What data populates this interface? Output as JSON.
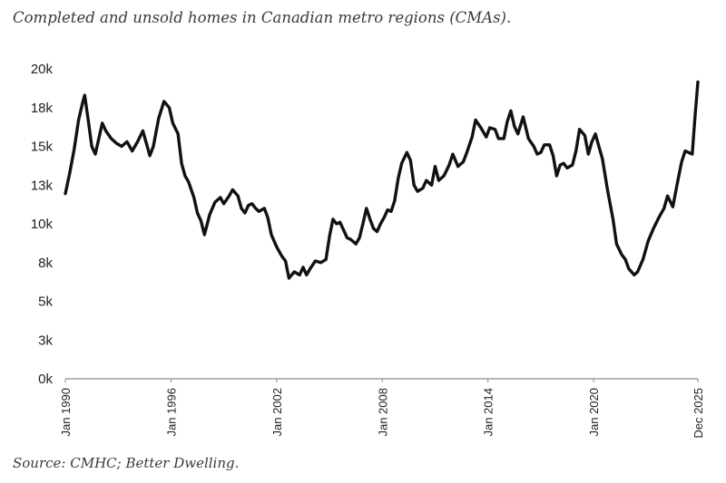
{
  "title": "Completed and unsold homes in Canadian metro regions (CMAs).",
  "source": "Source: CMHC; Better Dwelling.",
  "colors": {
    "line": "#111111",
    "axis": "#8c8c8c",
    "text": "#222222"
  },
  "chart_data": {
    "type": "line",
    "title": "Completed and unsold homes in Canadian metro regions (CMAs).",
    "xlabel": "",
    "ylabel": "",
    "ylim": [
      0,
      20000
    ],
    "xlim": [
      1990.0,
      2025.92
    ],
    "grid": false,
    "legend": "none",
    "yticks": [
      {
        "value": 0,
        "label": "0k"
      },
      {
        "value": 2500,
        "label": "3k"
      },
      {
        "value": 5000,
        "label": "5k"
      },
      {
        "value": 7500,
        "label": "8k"
      },
      {
        "value": 10000,
        "label": "10k"
      },
      {
        "value": 12500,
        "label": "13k"
      },
      {
        "value": 15000,
        "label": "15k"
      },
      {
        "value": 17500,
        "label": "18k"
      },
      {
        "value": 20000,
        "label": "20k"
      }
    ],
    "xticks": [
      {
        "value": 1990.0,
        "label": "Jan 1990"
      },
      {
        "value": 1996.0,
        "label": "Jan 1996"
      },
      {
        "value": 2002.0,
        "label": "Jan 2002"
      },
      {
        "value": 2008.0,
        "label": "Jan 2008"
      },
      {
        "value": 2014.0,
        "label": "Jan 2014"
      },
      {
        "value": 2020.0,
        "label": "Jan 2020"
      },
      {
        "value": 2025.92,
        "label": "Dec 2025"
      }
    ],
    "series": [
      {
        "values": [
          [
            1990.0,
            11950
          ],
          [
            1990.25,
            13300
          ],
          [
            1990.5,
            14800
          ],
          [
            1990.75,
            16700
          ],
          [
            1991.0,
            17900
          ],
          [
            1991.1,
            18300
          ],
          [
            1991.3,
            16700
          ],
          [
            1991.5,
            15000
          ],
          [
            1991.7,
            14500
          ],
          [
            1991.9,
            15500
          ],
          [
            1992.1,
            16500
          ],
          [
            1992.3,
            16000
          ],
          [
            1992.6,
            15500
          ],
          [
            1992.9,
            15200
          ],
          [
            1993.2,
            15000
          ],
          [
            1993.5,
            15300
          ],
          [
            1993.8,
            14700
          ],
          [
            1994.1,
            15300
          ],
          [
            1994.4,
            16000
          ],
          [
            1994.6,
            15200
          ],
          [
            1994.8,
            14400
          ],
          [
            1995.0,
            15000
          ],
          [
            1995.3,
            16800
          ],
          [
            1995.6,
            17900
          ],
          [
            1995.9,
            17500
          ],
          [
            1996.1,
            16500
          ],
          [
            1996.4,
            15800
          ],
          [
            1996.6,
            13900
          ],
          [
            1996.8,
            13100
          ],
          [
            1997.0,
            12700
          ],
          [
            1997.3,
            11700
          ],
          [
            1997.5,
            10700
          ],
          [
            1997.7,
            10200
          ],
          [
            1997.9,
            9300
          ],
          [
            1998.2,
            10600
          ],
          [
            1998.5,
            11400
          ],
          [
            1998.8,
            11700
          ],
          [
            1999.0,
            11300
          ],
          [
            1999.3,
            11800
          ],
          [
            1999.5,
            12200
          ],
          [
            1999.8,
            11800
          ],
          [
            2000.0,
            11000
          ],
          [
            2000.2,
            10700
          ],
          [
            2000.4,
            11200
          ],
          [
            2000.6,
            11300
          ],
          [
            2000.8,
            11000
          ],
          [
            2001.0,
            10800
          ],
          [
            2001.3,
            11000
          ],
          [
            2001.5,
            10400
          ],
          [
            2001.7,
            9300
          ],
          [
            2002.0,
            8500
          ],
          [
            2002.3,
            7900
          ],
          [
            2002.5,
            7600
          ],
          [
            2002.7,
            6500
          ],
          [
            2003.0,
            6900
          ],
          [
            2003.3,
            6700
          ],
          [
            2003.5,
            7200
          ],
          [
            2003.7,
            6700
          ],
          [
            2003.9,
            7100
          ],
          [
            2004.2,
            7600
          ],
          [
            2004.5,
            7500
          ],
          [
            2004.8,
            7700
          ],
          [
            2005.0,
            9200
          ],
          [
            2005.2,
            10300
          ],
          [
            2005.4,
            10000
          ],
          [
            2005.6,
            10100
          ],
          [
            2005.8,
            9600
          ],
          [
            2006.0,
            9100
          ],
          [
            2006.2,
            9000
          ],
          [
            2006.5,
            8700
          ],
          [
            2006.7,
            9100
          ],
          [
            2006.9,
            10000
          ],
          [
            2007.1,
            11000
          ],
          [
            2007.3,
            10300
          ],
          [
            2007.5,
            9700
          ],
          [
            2007.7,
            9500
          ],
          [
            2007.9,
            10000
          ],
          [
            2008.1,
            10400
          ],
          [
            2008.3,
            10900
          ],
          [
            2008.5,
            10800
          ],
          [
            2008.7,
            11500
          ],
          [
            2008.9,
            12900
          ],
          [
            2009.1,
            13900
          ],
          [
            2009.4,
            14600
          ],
          [
            2009.6,
            14100
          ],
          [
            2009.8,
            12500
          ],
          [
            2010.0,
            12100
          ],
          [
            2010.3,
            12300
          ],
          [
            2010.5,
            12800
          ],
          [
            2010.8,
            12500
          ],
          [
            2011.0,
            13700
          ],
          [
            2011.2,
            12800
          ],
          [
            2011.5,
            13100
          ],
          [
            2011.8,
            13800
          ],
          [
            2012.0,
            14500
          ],
          [
            2012.3,
            13700
          ],
          [
            2012.6,
            14000
          ],
          [
            2012.8,
            14600
          ],
          [
            2013.1,
            15600
          ],
          [
            2013.3,
            16700
          ],
          [
            2013.6,
            16200
          ],
          [
            2013.9,
            15600
          ],
          [
            2014.1,
            16200
          ],
          [
            2014.4,
            16100
          ],
          [
            2014.6,
            15500
          ],
          [
            2014.9,
            15500
          ],
          [
            2015.1,
            16600
          ],
          [
            2015.3,
            17300
          ],
          [
            2015.5,
            16300
          ],
          [
            2015.7,
            15800
          ],
          [
            2016.0,
            16900
          ],
          [
            2016.3,
            15500
          ],
          [
            2016.6,
            15000
          ],
          [
            2016.8,
            14500
          ],
          [
            2017.0,
            14600
          ],
          [
            2017.2,
            15100
          ],
          [
            2017.5,
            15100
          ],
          [
            2017.7,
            14400
          ],
          [
            2017.9,
            13100
          ],
          [
            2018.1,
            13800
          ],
          [
            2018.3,
            13900
          ],
          [
            2018.5,
            13600
          ],
          [
            2018.8,
            13800
          ],
          [
            2019.0,
            14700
          ],
          [
            2019.2,
            16100
          ],
          [
            2019.5,
            15700
          ],
          [
            2019.7,
            14500
          ],
          [
            2019.9,
            15300
          ],
          [
            2020.1,
            15800
          ],
          [
            2020.3,
            15000
          ],
          [
            2020.5,
            14200
          ],
          [
            2020.8,
            12100
          ],
          [
            2021.1,
            10300
          ],
          [
            2021.3,
            8700
          ],
          [
            2021.6,
            8000
          ],
          [
            2021.8,
            7700
          ],
          [
            2022.0,
            7100
          ],
          [
            2022.3,
            6700
          ],
          [
            2022.5,
            6900
          ],
          [
            2022.8,
            7700
          ],
          [
            2023.1,
            8900
          ],
          [
            2023.4,
            9700
          ],
          [
            2023.7,
            10400
          ],
          [
            2024.0,
            11000
          ],
          [
            2024.2,
            11800
          ],
          [
            2024.5,
            11100
          ],
          [
            2024.8,
            12900
          ],
          [
            2025.0,
            14000
          ],
          [
            2025.2,
            14700
          ],
          [
            2025.4,
            14600
          ],
          [
            2025.6,
            14500
          ],
          [
            2025.75,
            16800
          ],
          [
            2025.92,
            19150
          ]
        ]
      }
    ]
  }
}
